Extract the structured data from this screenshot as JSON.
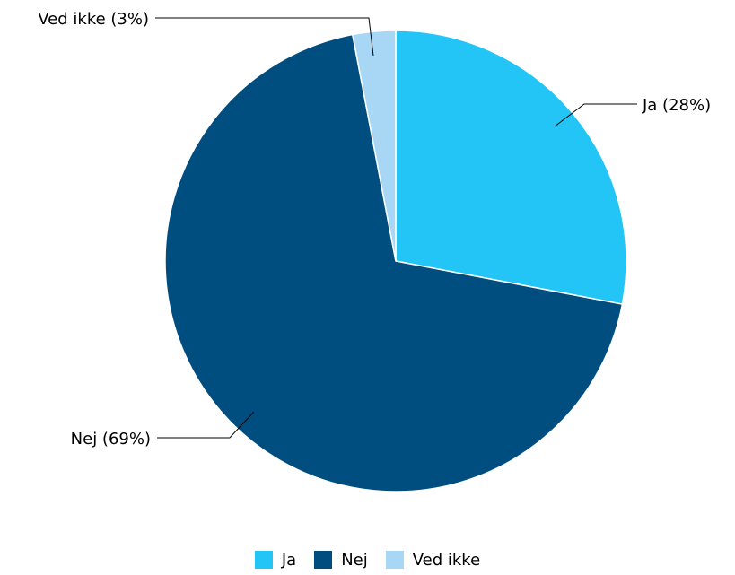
{
  "chart_data": {
    "type": "pie",
    "start_angle_deg": 0,
    "direction": "clockwise",
    "slices": [
      {
        "name": "Ja",
        "value": 28,
        "label": "Ja (28%)",
        "color": "#22C5F5"
      },
      {
        "name": "Nej",
        "value": 69,
        "label": "Nej (69%)",
        "color": "#004E80"
      },
      {
        "name": "Ved ikke",
        "value": 3,
        "label": "Ved ikke (3%)",
        "color": "#A8D6F5"
      }
    ],
    "legend": {
      "position": "bottom",
      "entries": [
        "Ja",
        "Nej",
        "Ved ikke"
      ]
    }
  }
}
